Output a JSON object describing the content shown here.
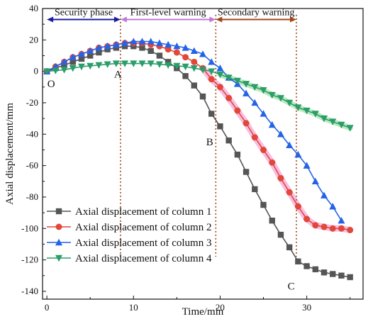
{
  "chart_data": {
    "type": "line",
    "xlabel": "Time/min",
    "ylabel": "Axial displacement/mm",
    "xlim": [
      -0.5,
      36.5
    ],
    "ylim": [
      -145,
      40
    ],
    "xticks": [
      0,
      10,
      20,
      30
    ],
    "yticks": [
      40,
      20,
      0,
      -20,
      -40,
      -60,
      -80,
      -100,
      -120,
      -140
    ],
    "legend_position": "bottom-left",
    "colors": {
      "series1": "#555555",
      "series2": "#e2483a",
      "series3": "#2563e6",
      "series4": "#2a9d6a",
      "highlight_pink": "#f5a8d8",
      "highlight_green": "#9fe0a0",
      "arrow_security": "#1d1d9e",
      "arrow_first": "#c07ad6",
      "arrow_secondary": "#a3471a",
      "marker_line": "#a3471a"
    },
    "series": [
      {
        "name": "Axial displacement of column 1",
        "marker": "square",
        "x": [
          0,
          1,
          2,
          3,
          4,
          5,
          6,
          7,
          8,
          9,
          10,
          11,
          12,
          13,
          14,
          15,
          16,
          17,
          18,
          19,
          20,
          21,
          22,
          23,
          24,
          25,
          26,
          27,
          28,
          29,
          30,
          31,
          32,
          33,
          34,
          35
        ],
        "values": [
          0,
          2,
          4,
          6,
          8,
          10,
          12,
          14,
          15,
          16,
          16,
          15,
          13,
          10,
          6,
          2,
          -3,
          -9,
          -16,
          -27,
          -35,
          -44,
          -53,
          -64,
          -75,
          -85,
          -95,
          -104,
          -112,
          -121,
          -124,
          -126,
          -128,
          -129,
          -130,
          -131
        ]
      },
      {
        "name": "Axial displacement of column 2",
        "marker": "circle",
        "x": [
          0,
          1,
          2,
          3,
          4,
          5,
          6,
          7,
          8,
          9,
          10,
          11,
          12,
          13,
          14,
          15,
          16,
          17,
          18,
          19,
          20,
          21,
          22,
          23,
          24,
          25,
          26,
          27,
          28,
          29,
          30,
          31,
          32,
          33,
          34,
          35
        ],
        "values": [
          0,
          3,
          6,
          9,
          11,
          13,
          15,
          16,
          17,
          18,
          18,
          18,
          17,
          16,
          14,
          12,
          9,
          6,
          2,
          -5,
          -10,
          -17,
          -25,
          -33,
          -42,
          -50,
          -58,
          -68,
          -77,
          -86,
          -94,
          -98,
          -99,
          -100,
          -100,
          -101
        ]
      },
      {
        "name": "Axial displacement of column 3",
        "marker": "triangle-up",
        "x": [
          0,
          1,
          2,
          3,
          4,
          5,
          6,
          7,
          8,
          9,
          10,
          11,
          12,
          13,
          14,
          15,
          16,
          17,
          18,
          19,
          20,
          21,
          22,
          23,
          24,
          25,
          26,
          27,
          28,
          29,
          30,
          31,
          32,
          33,
          34
        ],
        "values": [
          0,
          3,
          6,
          9,
          11,
          13,
          15,
          16,
          17,
          18,
          19,
          19,
          19,
          18,
          17,
          16,
          15,
          13,
          11,
          6,
          2,
          -4,
          -8,
          -14,
          -20,
          -27,
          -34,
          -40,
          -47,
          -53,
          -60,
          -70,
          -79,
          -86,
          -95
        ]
      },
      {
        "name": "Axial displacement of column 4",
        "marker": "triangle-down",
        "x": [
          0,
          1,
          2,
          3,
          4,
          5,
          6,
          7,
          8,
          9,
          10,
          11,
          12,
          13,
          14,
          15,
          16,
          17,
          18,
          19,
          20,
          21,
          22,
          23,
          24,
          25,
          26,
          27,
          28,
          29,
          30,
          31,
          32,
          33,
          34,
          35
        ],
        "values": [
          0,
          0.5,
          1,
          2,
          3,
          3.5,
          4,
          4.5,
          5,
          5,
          5,
          5,
          5,
          4.5,
          4,
          3.5,
          3,
          2,
          1,
          0,
          -2,
          -4,
          -6,
          -8,
          -10,
          -12,
          -15,
          -17,
          -20,
          -23,
          -25,
          -27,
          -30,
          -32,
          -34,
          -36
        ]
      }
    ],
    "phases": [
      {
        "label": "Security phase",
        "x_start": 0,
        "x_end": 8.5
      },
      {
        "label": "First-level warning",
        "x_start": 8.5,
        "x_end": 19.5
      },
      {
        "label": "Secondary warning",
        "x_start": 19.5,
        "x_end": 28.8
      }
    ],
    "point_labels": [
      {
        "label": "O",
        "x": 0.5,
        "y": -10
      },
      {
        "label": "A",
        "x": 8.2,
        "y": -4
      },
      {
        "label": "B",
        "x": 18.8,
        "y": -47
      },
      {
        "label": "C",
        "x": 28.2,
        "y": -139
      }
    ],
    "phase_lines_x": [
      8.5,
      19.5,
      28.8
    ]
  }
}
